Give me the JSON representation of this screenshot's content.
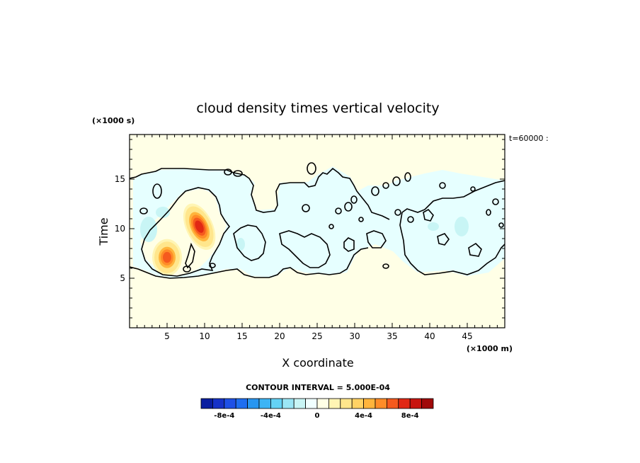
{
  "chart_data": {
    "type": "heatmap",
    "title": "cloud density times vertical velocity",
    "xlabel": "X coordinate",
    "ylabel": "Time",
    "x_units": "(×1000 m)",
    "y_units": "(×1000 s)",
    "annotation": "t=60000 :",
    "xlim": [
      0,
      50
    ],
    "ylim": [
      0,
      19.5
    ],
    "x_ticks": [
      5,
      10,
      15,
      20,
      25,
      30,
      35,
      40,
      45
    ],
    "y_ticks": [
      5,
      10,
      15
    ],
    "contour_interval_text": "CONTOUR INTERVAL = 5.000E-04",
    "colorbar": {
      "colors": [
        "#0a1ea0",
        "#1632c8",
        "#1e50e6",
        "#1e6ef0",
        "#2896f0",
        "#3cb4f5",
        "#64d2f5",
        "#9be6f5",
        "#c8f5f5",
        "#f0ffff",
        "#ffffe6",
        "#fff5b4",
        "#ffe68c",
        "#ffd264",
        "#ffb43c",
        "#ff8c28",
        "#f55a1e",
        "#e12814",
        "#c8140f",
        "#a00a0a"
      ],
      "tick_labels": [
        "-8e-4",
        "-4e-4",
        "0",
        "4e-4",
        "8e-4"
      ],
      "tick_values": [
        -0.0008,
        -0.0004,
        0,
        0.0004,
        0.0008
      ],
      "range": [
        -0.001,
        0.001
      ]
    },
    "zero_contour_level": 0,
    "positive_maxima": [
      {
        "x": 9.3,
        "y": 10.2,
        "value": 0.0007
      },
      {
        "x": 5.0,
        "y": 7.1,
        "value": 0.00055
      }
    ],
    "negative_region": "light-blue (≈ -1e-4 to -2e-4) field between y≈5 and y≈16"
  }
}
